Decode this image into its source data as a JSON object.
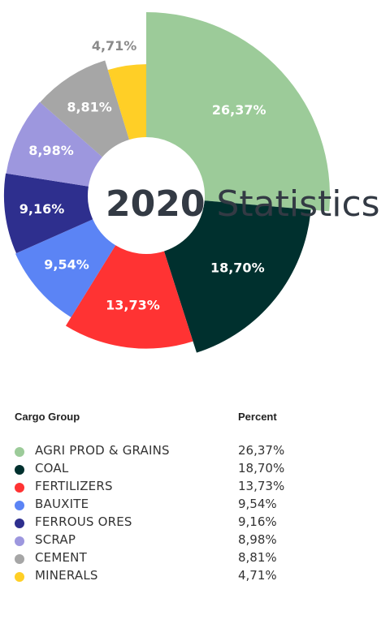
{
  "title": {
    "year": "2020",
    "word": "Statistics"
  },
  "table": {
    "header_group": "Cargo Group",
    "header_percent": "Percent",
    "rows": [
      {
        "name": "AGRI PROD & GRAINS",
        "percent": "26,37%",
        "color": "#9ccb99"
      },
      {
        "name": "COAL",
        "percent": "18,70%",
        "color": "#00302e"
      },
      {
        "name": "FERTILIZERS",
        "percent": "13,73%",
        "color": "#ff3333"
      },
      {
        "name": "BAUXITE",
        "percent": "9,54%",
        "color": "#5b84f5"
      },
      {
        "name": "FERROUS ORES",
        "percent": "9,16%",
        "color": "#2e2f8e"
      },
      {
        "name": "SCRAP",
        "percent": "8,98%",
        "color": "#9d97de"
      },
      {
        "name": "CEMENT",
        "percent": "8,81%",
        "color": "#a6a6a6"
      },
      {
        "name": "MINERALS",
        "percent": "4,71%",
        "color": "#ffcf26"
      }
    ]
  },
  "chart_data": {
    "type": "pie",
    "style": "variable-radius donut",
    "title": "2020 Statistics",
    "categories": [
      "AGRI PROD & GRAINS",
      "COAL",
      "FERTILIZERS",
      "BAUXITE",
      "FERROUS ORES",
      "SCRAP",
      "CEMENT",
      "MINERALS"
    ],
    "values": [
      26.37,
      18.7,
      13.73,
      9.54,
      9.16,
      8.98,
      8.81,
      4.71
    ],
    "labels": [
      "26,37%",
      "18,70%",
      "13,73%",
      "9,54%",
      "9,16%",
      "8,98%",
      "8,81%",
      "4,71%"
    ],
    "colors": [
      "#9ccb99",
      "#00302e",
      "#ff3333",
      "#5b84f5",
      "#2e2f8e",
      "#9d97de",
      "#a6a6a6",
      "#ffcf26"
    ],
    "legend": "table-below"
  }
}
